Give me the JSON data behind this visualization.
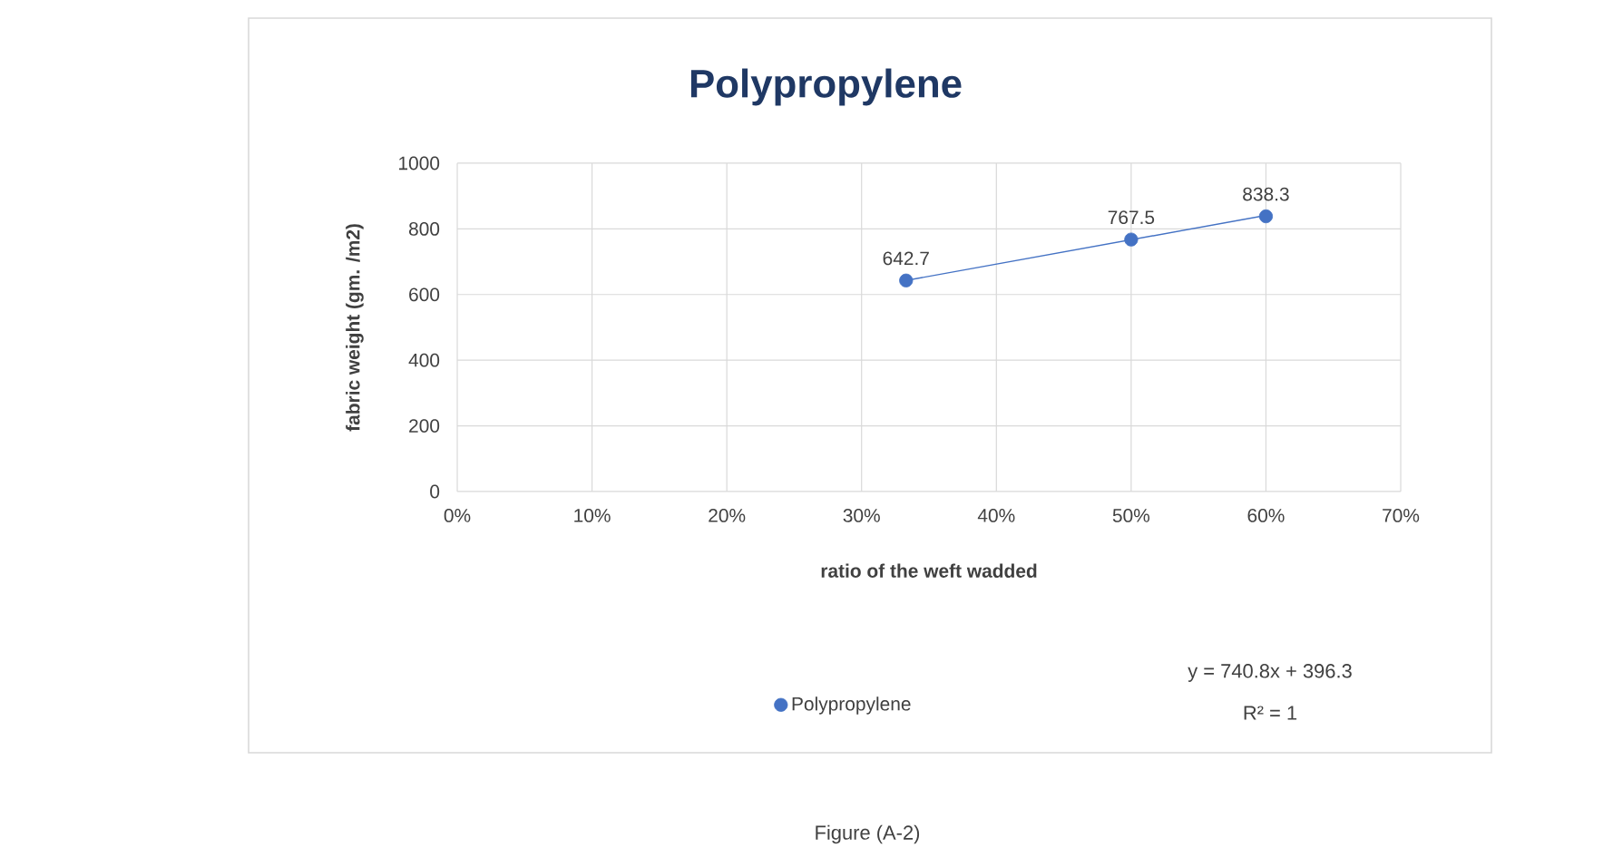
{
  "chart_data": {
    "type": "scatter",
    "title": "Polypropylene",
    "xlabel": "ratio of the weft wadded",
    "ylabel": "fabric weight (gm. /m2)",
    "series": [
      {
        "name": "Polypropylene",
        "type": "scatter",
        "color": "#4472c4",
        "x": [
          33.3,
          50,
          60
        ],
        "values": [
          642.7,
          767.5,
          838.3
        ],
        "value_labels": [
          "642.7",
          "767.5",
          "838.3"
        ]
      },
      {
        "type": "line",
        "color": "#4472c4",
        "marker": "none",
        "x": [
          33.3,
          60
        ],
        "values": [
          643,
          841
        ]
      }
    ],
    "xlim": [
      0,
      70
    ],
    "xticks": [
      {
        "value": 0,
        "label": "0%"
      },
      {
        "value": 10,
        "label": "10%"
      },
      {
        "value": 20,
        "label": "20%"
      },
      {
        "value": 30,
        "label": "30%"
      },
      {
        "value": 40,
        "label": "40%"
      },
      {
        "value": 50,
        "label": "50%"
      },
      {
        "value": 60,
        "label": "60%"
      },
      {
        "value": 70,
        "label": "70%"
      }
    ],
    "ylim": [
      0,
      1000
    ],
    "yticks": [
      0,
      200,
      400,
      600,
      800,
      1000
    ],
    "grid": true,
    "legend": "bottom",
    "marker": "circle",
    "annotations": [
      "y = 740.8x + 396.3",
      "R² = 1",
      "Figure (A-2)"
    ]
  }
}
